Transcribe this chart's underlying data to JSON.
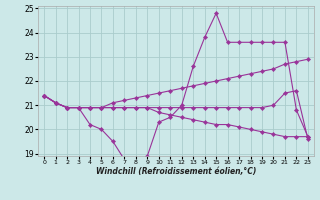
{
  "xlabel": "Windchill (Refroidissement éolien,°C)",
  "bg_color": "#cce8e8",
  "grid_color": "#aacccc",
  "line_color": "#993399",
  "ylim": [
    18.9,
    25.1
  ],
  "xlim": [
    -0.5,
    23.5
  ],
  "yticks": [
    19,
    20,
    21,
    22,
    23,
    24,
    25
  ],
  "xticks": [
    0,
    1,
    2,
    3,
    4,
    5,
    6,
    7,
    8,
    9,
    10,
    11,
    12,
    13,
    14,
    15,
    16,
    17,
    18,
    19,
    20,
    21,
    22,
    23
  ],
  "series": [
    {
      "x": [
        0,
        1,
        2,
        3,
        4,
        5,
        6,
        7,
        8,
        9,
        10,
        11,
        12,
        13,
        14,
        15,
        16,
        17,
        18,
        19,
        20,
        21,
        22,
        23
      ],
      "y": [
        21.4,
        21.1,
        20.9,
        20.9,
        20.2,
        20.0,
        19.5,
        18.75,
        18.75,
        18.9,
        20.3,
        20.5,
        21.0,
        22.6,
        23.8,
        24.8,
        23.6,
        23.6,
        23.6,
        23.6,
        23.6,
        23.6,
        20.8,
        19.7
      ]
    },
    {
      "x": [
        0,
        1,
        2,
        3,
        4,
        5,
        6,
        7,
        8,
        9,
        10,
        11,
        12,
        13,
        14,
        15,
        16,
        17,
        18,
        19,
        20,
        21,
        22,
        23
      ],
      "y": [
        21.4,
        21.1,
        20.9,
        20.9,
        20.9,
        20.9,
        21.1,
        21.2,
        21.3,
        21.4,
        21.5,
        21.6,
        21.7,
        21.8,
        21.9,
        22.0,
        22.1,
        22.2,
        22.3,
        22.4,
        22.5,
        22.7,
        22.8,
        22.9
      ]
    },
    {
      "x": [
        0,
        1,
        2,
        3,
        4,
        5,
        6,
        7,
        8,
        9,
        10,
        11,
        12,
        13,
        14,
        15,
        16,
        17,
        18,
        19,
        20,
        21,
        22,
        23
      ],
      "y": [
        21.4,
        21.1,
        20.9,
        20.9,
        20.9,
        20.9,
        20.9,
        20.9,
        20.9,
        20.9,
        20.9,
        20.9,
        20.9,
        20.9,
        20.9,
        20.9,
        20.9,
        20.9,
        20.9,
        20.9,
        21.0,
        21.5,
        21.6,
        19.6
      ]
    },
    {
      "x": [
        0,
        1,
        2,
        3,
        4,
        5,
        6,
        7,
        8,
        9,
        10,
        11,
        12,
        13,
        14,
        15,
        16,
        17,
        18,
        19,
        20,
        21,
        22,
        23
      ],
      "y": [
        21.4,
        21.1,
        20.9,
        20.9,
        20.9,
        20.9,
        20.9,
        20.9,
        20.9,
        20.9,
        20.7,
        20.6,
        20.5,
        20.4,
        20.3,
        20.2,
        20.2,
        20.1,
        20.0,
        19.9,
        19.8,
        19.7,
        19.7,
        19.7
      ]
    }
  ]
}
